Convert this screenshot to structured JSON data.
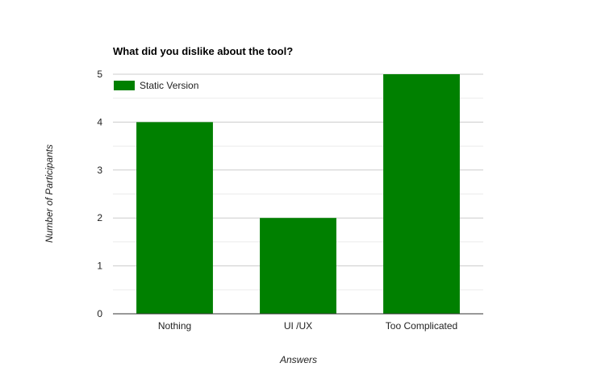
{
  "chart_data": {
    "type": "bar",
    "title": "What did you dislike about the tool?",
    "xlabel": "Answers",
    "ylabel": "Number of Participants",
    "categories": [
      "Nothing",
      "UI /UX",
      "Too Complicated"
    ],
    "series": [
      {
        "name": "Static Version",
        "values": [
          4,
          2,
          5
        ],
        "color": "#008000"
      }
    ],
    "ylim": [
      0,
      5
    ],
    "yticks": [
      "0",
      "1",
      "2",
      "3",
      "4",
      "5"
    ],
    "grid": true,
    "legend_position": "top-left"
  }
}
